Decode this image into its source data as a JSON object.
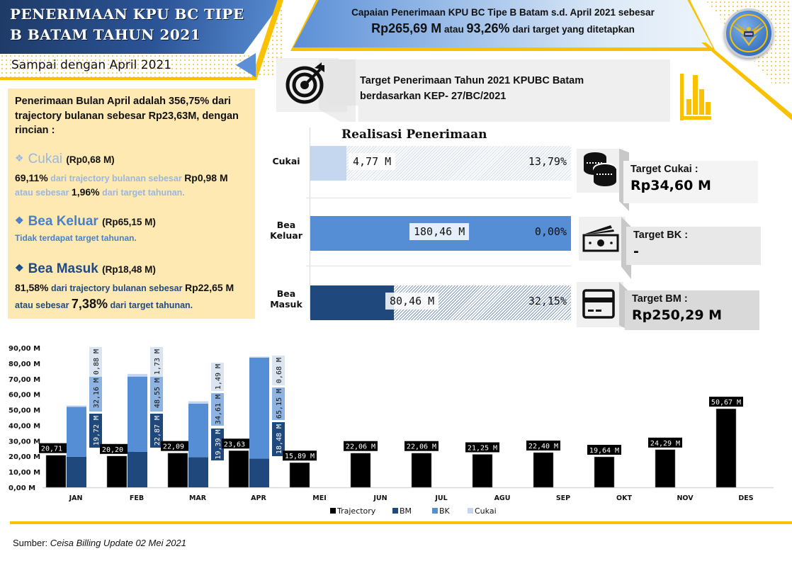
{
  "header": {
    "title_line1": "Penerimaan KPU BC Tipe",
    "title_line2": "B Batam Tahun 2021",
    "subtitle": "Sampai dengan April 2021",
    "logo_icon": "customs-emblem-icon"
  },
  "achievement": {
    "line1": "Capaian Penerimaan KPU BC Tipe B Batam s.d. April 2021 sebesar",
    "amount": "Rp265,69 M",
    "connector": "atau",
    "percent": "93,26%",
    "suffix": "dari target yang ditetapkan"
  },
  "april_summary": {
    "intro": "Penerimaan Bulan April adalah 356,75% dari trajectory bulanan sebesar Rp23,63M, dengan rincian :",
    "cukai": {
      "name": "Cukai",
      "amount": "(Rp0,68 M)",
      "pct_traj": "69,11%",
      "traj_text": "dari trajectory bulanan sebesar",
      "traj_amount": "Rp0,98 M",
      "pre_target": "atau sebesar",
      "pct_target": "1,96%",
      "post_target": "dari target tahunan."
    },
    "bea_keluar": {
      "name": "Bea Keluar",
      "amount": "(Rp65,15 M)",
      "note": "Tidak terdapat target tahunan."
    },
    "bea_masuk": {
      "name": "Bea Masuk",
      "amount": "(Rp18,48 M)",
      "pct_traj": "81,58%",
      "traj_text": "dari trajectory bulanan sebesar",
      "traj_amount": "Rp22,65 M",
      "pre_target": "atau sebesar",
      "pct_target": "7,38%",
      "post_target": "dari target tahunan."
    },
    "bullet_icon": "diamond-bullet-icon",
    "colors": {
      "cukai": "#9ab7df",
      "bea_keluar": "#4a7fc8",
      "bea_masuk": "#1f4b82"
    }
  },
  "target_info": {
    "text_line1": "Target Penerimaan Tahun 2021 KPUBC Batam",
    "text_line2": "berdasarkan KEP- 27/BC/2021",
    "left_icon": "target-icon",
    "right_icon": "bar-chart-icon"
  },
  "realisasi": {
    "title": "Realisasi Penerimaan",
    "rows": [
      {
        "label": "Cukai",
        "value": "4,77 M",
        "percent": "13,79%",
        "fill_pct": 13.79,
        "color": "#c5d7ef"
      },
      {
        "label_line1": "Bea",
        "label_line2": "Keluar",
        "value": "180,46 M",
        "percent": "0,00%",
        "fill_pct": 100,
        "color": "#558ed5"
      },
      {
        "label_line1": "Bea",
        "label_line2": "Masuk",
        "value": "80,46 M",
        "percent": "32,15%",
        "fill_pct": 32.15,
        "color": "#1f497d"
      }
    ]
  },
  "targets": [
    {
      "label": "Target Cukai :",
      "value": "Rp34,60 M",
      "icon": "coins-icon"
    },
    {
      "label": "Target BK :",
      "value": "-",
      "icon": "banknote-icon"
    },
    {
      "label": "Target BM :",
      "value": "Rp250,29 M",
      "icon": "credit-card-icon"
    }
  ],
  "chart_data": {
    "type": "bar",
    "title": "",
    "xlabel": "",
    "ylabel": "",
    "ylim": [
      0,
      90
    ],
    "yticks": [
      "0,00 M",
      "10,00 M",
      "20,00 M",
      "30,00 M",
      "40,00 M",
      "50,00 M",
      "60,00 M",
      "70,00 M",
      "80,00 M",
      "90,00 M"
    ],
    "categories": [
      "JAN",
      "FEB",
      "MAR",
      "APR",
      "MEI",
      "JUN",
      "JUL",
      "AGU",
      "SEP",
      "OKT",
      "NOV",
      "DES"
    ],
    "trajectory": {
      "name": "Trajectory",
      "color": "#000000",
      "values": [
        20.71,
        20.2,
        22.09,
        23.63,
        15.89,
        22.06,
        22.06,
        21.25,
        22.4,
        19.64,
        24.29,
        50.67
      ],
      "labels": [
        "20,71 M",
        "20,20 M",
        "22,09 M",
        "23,63 M",
        "15,89 M",
        "22,06 M",
        "22,06 M",
        "21,25 M",
        "22,40 M",
        "19,64 M",
        "24,29 M",
        "50,67 M"
      ]
    },
    "stacked_series": [
      {
        "name": "BM",
        "color": "#1f497d",
        "values": [
          19.72,
          22.87,
          19.39,
          18.48
        ],
        "labels": [
          "19,72 M",
          "22,87 M",
          "19,39 M",
          "18,48 M"
        ]
      },
      {
        "name": "BK",
        "color": "#558ed5",
        "values": [
          32.16,
          48.55,
          34.61,
          65.15
        ],
        "labels": [
          "32,16 M",
          "48,55 M",
          "34,61 M",
          "65,15 M"
        ]
      },
      {
        "name": "Cukai",
        "color": "#c5d7ef",
        "values": [
          0.88,
          1.73,
          1.49,
          0.68
        ],
        "labels": [
          "0,88 M",
          "1,73 M",
          "1,49 M",
          "0,68 M"
        ]
      }
    ],
    "legend": [
      "Trajectory",
      "BM",
      "BK",
      "Cukai"
    ],
    "legend_position": "bottom-center",
    "grid": false
  },
  "footer": {
    "source_label": "Sumber:",
    "source_text": "Ceisa Billing Update 02 Mei 2021"
  }
}
